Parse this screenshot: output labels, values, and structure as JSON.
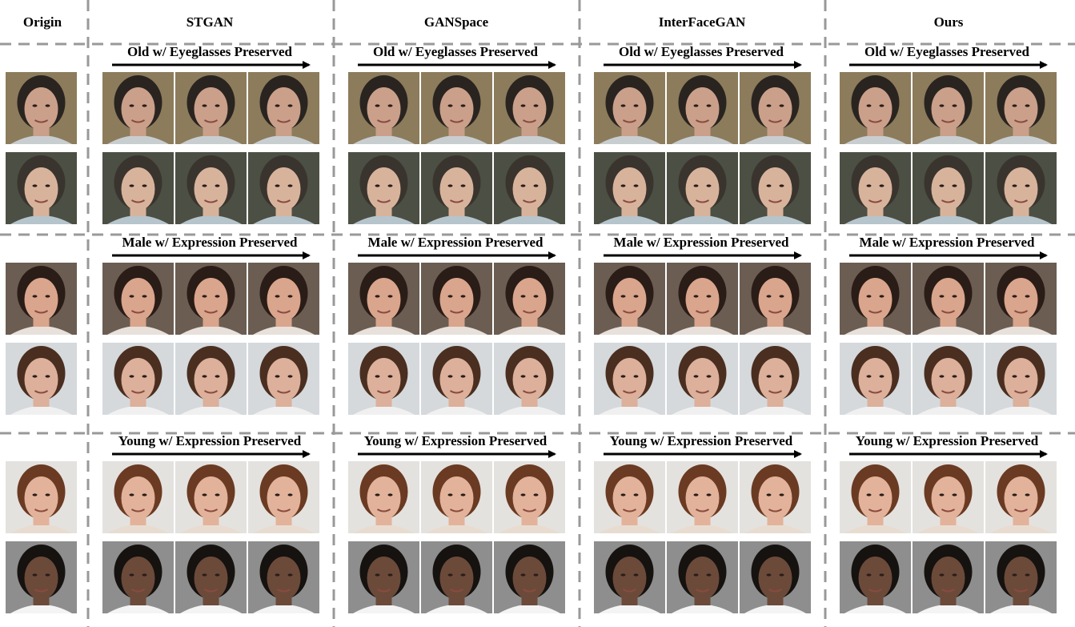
{
  "columns": [
    "Origin",
    "STGAN",
    "GANSpace",
    "InterFaceGAN",
    "Ours"
  ],
  "sections": [
    {
      "label": "Old w/ Eyeglasses Preserved"
    },
    {
      "label": "Male w/ Expression Preserved"
    },
    {
      "label": "Young w/ Expression Preserved"
    }
  ]
}
